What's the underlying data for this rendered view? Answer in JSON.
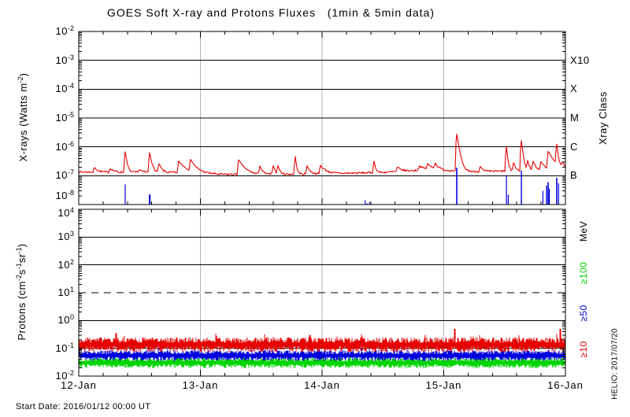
{
  "title": "GOES Soft X-ray and Protons Fluxes   (1min & 5min data)",
  "start_date": "Start Date: 2016/01/12 00:00 UT",
  "helio": "HELIO: 2017/07/20",
  "colors": {
    "xray_long": "#e60000",
    "xray_short": "#0000dd",
    "protons_ge10": "#e60000",
    "protons_ge50": "#0000dd",
    "protons_ge100": "#00d400",
    "grid_gray": "#b4b4b4",
    "axis_black": "#000000"
  },
  "axis_labels": {
    "xray_segments": [
      {
        "t": "X-rays (Watts m"
      },
      {
        "sup": "-2"
      },
      {
        "t": ")"
      }
    ],
    "proton_segments": [
      {
        "t": "Protons (cm"
      },
      {
        "sup": "-2"
      },
      {
        "t": "s"
      },
      {
        "sup": "-1"
      },
      {
        "t": "sr"
      },
      {
        "sup": "-1"
      },
      {
        "t": ")"
      }
    ]
  },
  "chart_data": [
    {
      "type": "line",
      "title": "GOES soft X-ray flux (top panel)",
      "ylabel": "X-rays (Watts m^-2)",
      "ylim": [
        1e-08,
        0.01
      ],
      "y_ticks_exponents": [
        -2,
        -3,
        -4,
        -5,
        -6,
        -7,
        -8
      ],
      "x_labels": [
        "12-Jan",
        "13-Jan",
        "14-Jan",
        "15-Jan",
        "16-Jan"
      ],
      "x_range_days": [
        0,
        4
      ],
      "grid": {
        "vertical_days": [
          1,
          2,
          3
        ],
        "horizontal_decades": [
          -3,
          -4,
          -5,
          -6,
          -7
        ]
      },
      "right_axis": {
        "title": "Xray Class",
        "labels": [
          {
            "label": "X10",
            "at_flux": 0.001
          },
          {
            "label": "X",
            "at_flux": 0.0001
          },
          {
            "label": "M",
            "at_flux": 1e-05
          },
          {
            "label": "C",
            "at_flux": 1e-06
          },
          {
            "label": "B",
            "at_flux": 1e-07
          }
        ]
      },
      "series": [
        {
          "name": "xray-long-1-8A",
          "color": "#e60000",
          "baseline_points": [
            [
              0,
              1.35e-07
            ],
            [
              0.55,
              1.3e-07
            ],
            [
              1.0,
              1.28e-07
            ],
            [
              1.15,
              1.12e-07
            ],
            [
              1.45,
              1.1e-07
            ],
            [
              2.05,
              1.18e-07
            ],
            [
              2.5,
              1.3e-07
            ],
            [
              2.75,
              1.5e-07
            ],
            [
              2.92,
              1.85e-07
            ],
            [
              3.02,
              1.55e-07
            ],
            [
              3.25,
              1.4e-07
            ],
            [
              3.55,
              1.45e-07
            ],
            [
              3.8,
              1.6e-07
            ],
            [
              4,
              1.5e-07
            ]
          ],
          "flares_day_peak_decay": [
            [
              0.13,
              6e-08,
              0.025
            ],
            [
              0.26,
              5e-08,
              0.025
            ],
            [
              0.382,
              5.6e-07,
              0.012
            ],
            [
              0.5,
              4e-08,
              0.02
            ],
            [
              0.583,
              5.2e-07,
              0.015
            ],
            [
              0.66,
              1.3e-07,
              0.02
            ],
            [
              0.822,
              1.9e-07,
              0.05
            ],
            [
              0.92,
              2.2e-07,
              0.035
            ],
            [
              1.314,
              2.4e-07,
              0.045
            ],
            [
              1.489,
              1.1e-07,
              0.018
            ],
            [
              1.599,
              1.2e-07,
              0.014
            ],
            [
              1.638,
              1.1e-07,
              0.014
            ],
            [
              1.78,
              3.5e-07,
              0.009
            ],
            [
              1.877,
              1.1e-07,
              0.02
            ],
            [
              1.987,
              1.1e-07,
              0.04
            ],
            [
              2.427,
              1.9e-07,
              0.012
            ],
            [
              2.62,
              6e-08,
              0.03
            ],
            [
              2.8,
              6e-08,
              0.03
            ],
            [
              2.867,
              8e-08,
              0.025
            ],
            [
              2.93,
              9e-08,
              0.02
            ],
            [
              3.107,
              2.65e-06,
              0.016
            ],
            [
              3.3,
              8e-08,
              0.015
            ],
            [
              3.515,
              9e-07,
              0.009
            ],
            [
              3.575,
              1.6e-07,
              0.012
            ],
            [
              3.638,
              1.55e-06,
              0.011
            ],
            [
              3.69,
              1.8e-07,
              0.012
            ],
            [
              3.735,
              1.7e-07,
              0.018
            ],
            [
              3.8,
              1.6e-07,
              0.025
            ],
            [
              3.858,
              5.5e-07,
              0.045
            ],
            [
              3.929,
              1e-06,
              0.009
            ],
            [
              3.975,
              1.2e-07,
              0.02
            ]
          ]
        },
        {
          "name": "xray-short-05-4A",
          "color": "#0000dd",
          "spikes_day_peak_width": [
            [
              0.382,
              5e-08,
              1.2
            ],
            [
              0.583,
              2.2e-08,
              2.2
            ],
            [
              2.355,
              1.4e-08,
              1.2
            ],
            [
              2.372,
              1.1e-08,
              1.2
            ],
            [
              2.39,
              1.2e-08,
              1.2
            ],
            [
              3.107,
              1.9e-07,
              1.6
            ],
            [
              3.515,
              1.05e-07,
              1.2
            ],
            [
              3.53,
              2.2e-08,
              1.2
            ],
            [
              3.638,
              1.5e-07,
              1.4
            ],
            [
              3.815,
              3e-08,
              1.2
            ],
            [
              3.845,
              4.5e-08,
              1.4
            ],
            [
              3.858,
              6e-08,
              1.6
            ],
            [
              3.868,
              3.5e-08,
              1.2
            ],
            [
              3.929,
              8.5e-08,
              1.6
            ],
            [
              3.944,
              5.5e-08,
              1.2
            ]
          ]
        }
      ]
    },
    {
      "type": "line",
      "title": "GOES proton flux (bottom panel)",
      "ylabel": "Protons (cm^-2 s^-1 sr^-1)",
      "ylim": [
        0.01,
        10000.0
      ],
      "y_ticks_exponents": [
        4,
        3,
        2,
        1,
        0,
        -1,
        -2
      ],
      "x_labels": [
        "12-Jan",
        "13-Jan",
        "14-Jan",
        "15-Jan",
        "16-Jan"
      ],
      "threshold": {
        "value": 10,
        "style": "dashed"
      },
      "legend": {
        "title": "MeV",
        "items": [
          {
            "label": "≥100",
            "color": "#00d400"
          },
          {
            "label": "≥50",
            "color": "#0000dd"
          },
          {
            "label": "≥10",
            "color": "#e60000"
          }
        ]
      },
      "series": [
        {
          "name": "protons-ge100",
          "color": "#00d400",
          "mean": 0.03,
          "log_spread": 0.16,
          "spikes_day_peak": []
        },
        {
          "name": "protons-ge50",
          "color": "#0000dd",
          "mean": 0.055,
          "log_spread": 0.16,
          "spikes_day_peak": []
        },
        {
          "name": "protons-ge10",
          "color": "#e60000",
          "mean": 0.135,
          "log_spread": 0.22,
          "spikes_day_peak": [
            [
              0.31,
              0.35
            ],
            [
              1.9,
              0.3
            ],
            [
              3.09,
              0.5
            ],
            [
              3.955,
              0.5
            ]
          ]
        }
      ]
    }
  ]
}
